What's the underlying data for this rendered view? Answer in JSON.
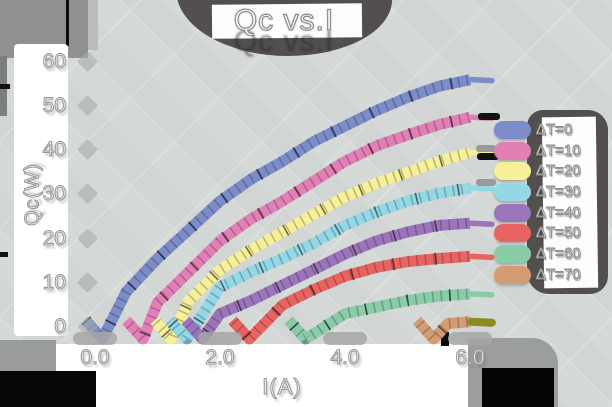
{
  "title": "Qc vs.I",
  "axes": {
    "x": {
      "label": "I(A)",
      "ticks": [
        {
          "value": 0,
          "label": "0.0"
        },
        {
          "value": 2,
          "label": "2.0"
        },
        {
          "value": 4,
          "label": "4.0"
        },
        {
          "value": 6,
          "label": "6.0"
        }
      ]
    },
    "y": {
      "label": "Qc(W)",
      "ticks": [
        {
          "value": 0,
          "label": "0"
        },
        {
          "value": 10,
          "label": "10"
        },
        {
          "value": 20,
          "label": "20"
        },
        {
          "value": 30,
          "label": "30"
        },
        {
          "value": 40,
          "label": "40"
        },
        {
          "value": 50,
          "label": "50"
        },
        {
          "value": 60,
          "label": "60"
        }
      ]
    }
  },
  "colors": {
    "background": "#d5d9d8",
    "panel_shadow": "#524f4e",
    "corner_gray": "#8f9190",
    "text": "#ffffff",
    "text_outline": "#9a9a9a"
  },
  "chart_data": {
    "type": "line",
    "title": "Qc vs.I",
    "xlabel": "I(A)",
    "ylabel": "Qc(W)",
    "xlim": [
      0,
      6.35
    ],
    "ylim": [
      0,
      60
    ],
    "grid": false,
    "legend_position": "right",
    "series": [
      {
        "name": "ΔT=0",
        "color": "#7b8cc8",
        "points": [
          [
            0,
            0
          ],
          [
            0.5,
            8
          ],
          [
            1,
            15.5
          ],
          [
            1.5,
            22
          ],
          [
            2,
            28.5
          ],
          [
            2.5,
            33.5
          ],
          [
            3,
            37.5
          ],
          [
            3.5,
            42
          ],
          [
            4,
            45.5
          ],
          [
            4.5,
            49
          ],
          [
            5,
            52
          ],
          [
            5.5,
            54.5
          ],
          [
            6,
            56
          ]
        ]
      },
      {
        "name": "ΔT=10",
        "color": "#e27fb4",
        "points": [
          [
            0.65,
            0
          ],
          [
            1,
            5.5
          ],
          [
            1.5,
            12.5
          ],
          [
            2,
            19.5
          ],
          [
            2.5,
            24.5
          ],
          [
            3,
            28.5
          ],
          [
            3.5,
            33
          ],
          [
            4,
            37.5
          ],
          [
            4.5,
            41
          ],
          [
            5,
            43.5
          ],
          [
            5.5,
            45.8
          ],
          [
            6,
            47.5
          ]
        ]
      },
      {
        "name": "ΔT=20",
        "color": "#f6f098",
        "points": [
          [
            1.1,
            0
          ],
          [
            1.5,
            6
          ],
          [
            2,
            13
          ],
          [
            2.5,
            17.5
          ],
          [
            3,
            21.5
          ],
          [
            3.5,
            25.5
          ],
          [
            4,
            29.5
          ],
          [
            4.5,
            32.5
          ],
          [
            5,
            35
          ],
          [
            5.5,
            37.5
          ],
          [
            6,
            39.5
          ]
        ]
      },
      {
        "name": "ΔT=30",
        "color": "#94d8e5",
        "points": [
          [
            1.35,
            0
          ],
          [
            2,
            9
          ],
          [
            2.5,
            12.5
          ],
          [
            3,
            15.5
          ],
          [
            3.5,
            19
          ],
          [
            4,
            23
          ],
          [
            4.5,
            26
          ],
          [
            5,
            28.5
          ],
          [
            5.5,
            30.3
          ],
          [
            6,
            31.5
          ]
        ]
      },
      {
        "name": "ΔT=40",
        "color": "#9c74ba",
        "points": [
          [
            1.6,
            0
          ],
          [
            2,
            3
          ],
          [
            2.5,
            6
          ],
          [
            3,
            9.5
          ],
          [
            3.5,
            13
          ],
          [
            4,
            16.5
          ],
          [
            4.5,
            19.5
          ],
          [
            5,
            21.5
          ],
          [
            5.5,
            23
          ],
          [
            6,
            23.5
          ]
        ]
      },
      {
        "name": "ΔT=50",
        "color": "#e96460",
        "points": [
          [
            2.35,
            0
          ],
          [
            3,
            5
          ],
          [
            3.5,
            8.5
          ],
          [
            4,
            11.5
          ],
          [
            4.5,
            13.5
          ],
          [
            5,
            14.8
          ],
          [
            5.5,
            15.5
          ],
          [
            6,
            16
          ]
        ]
      },
      {
        "name": "ΔT=60",
        "color": "#8acba8",
        "points": [
          [
            3.25,
            0
          ],
          [
            4,
            3
          ],
          [
            4.5,
            4.5
          ],
          [
            5,
            6
          ],
          [
            5.5,
            7
          ],
          [
            6,
            7.5
          ]
        ]
      },
      {
        "name": "ΔT=70",
        "color": "#d59c73",
        "cap_color": "#8b8b22",
        "points": [
          [
            5.3,
            0
          ],
          [
            5.65,
            0.8
          ],
          [
            6,
            1.2
          ]
        ]
      }
    ]
  }
}
